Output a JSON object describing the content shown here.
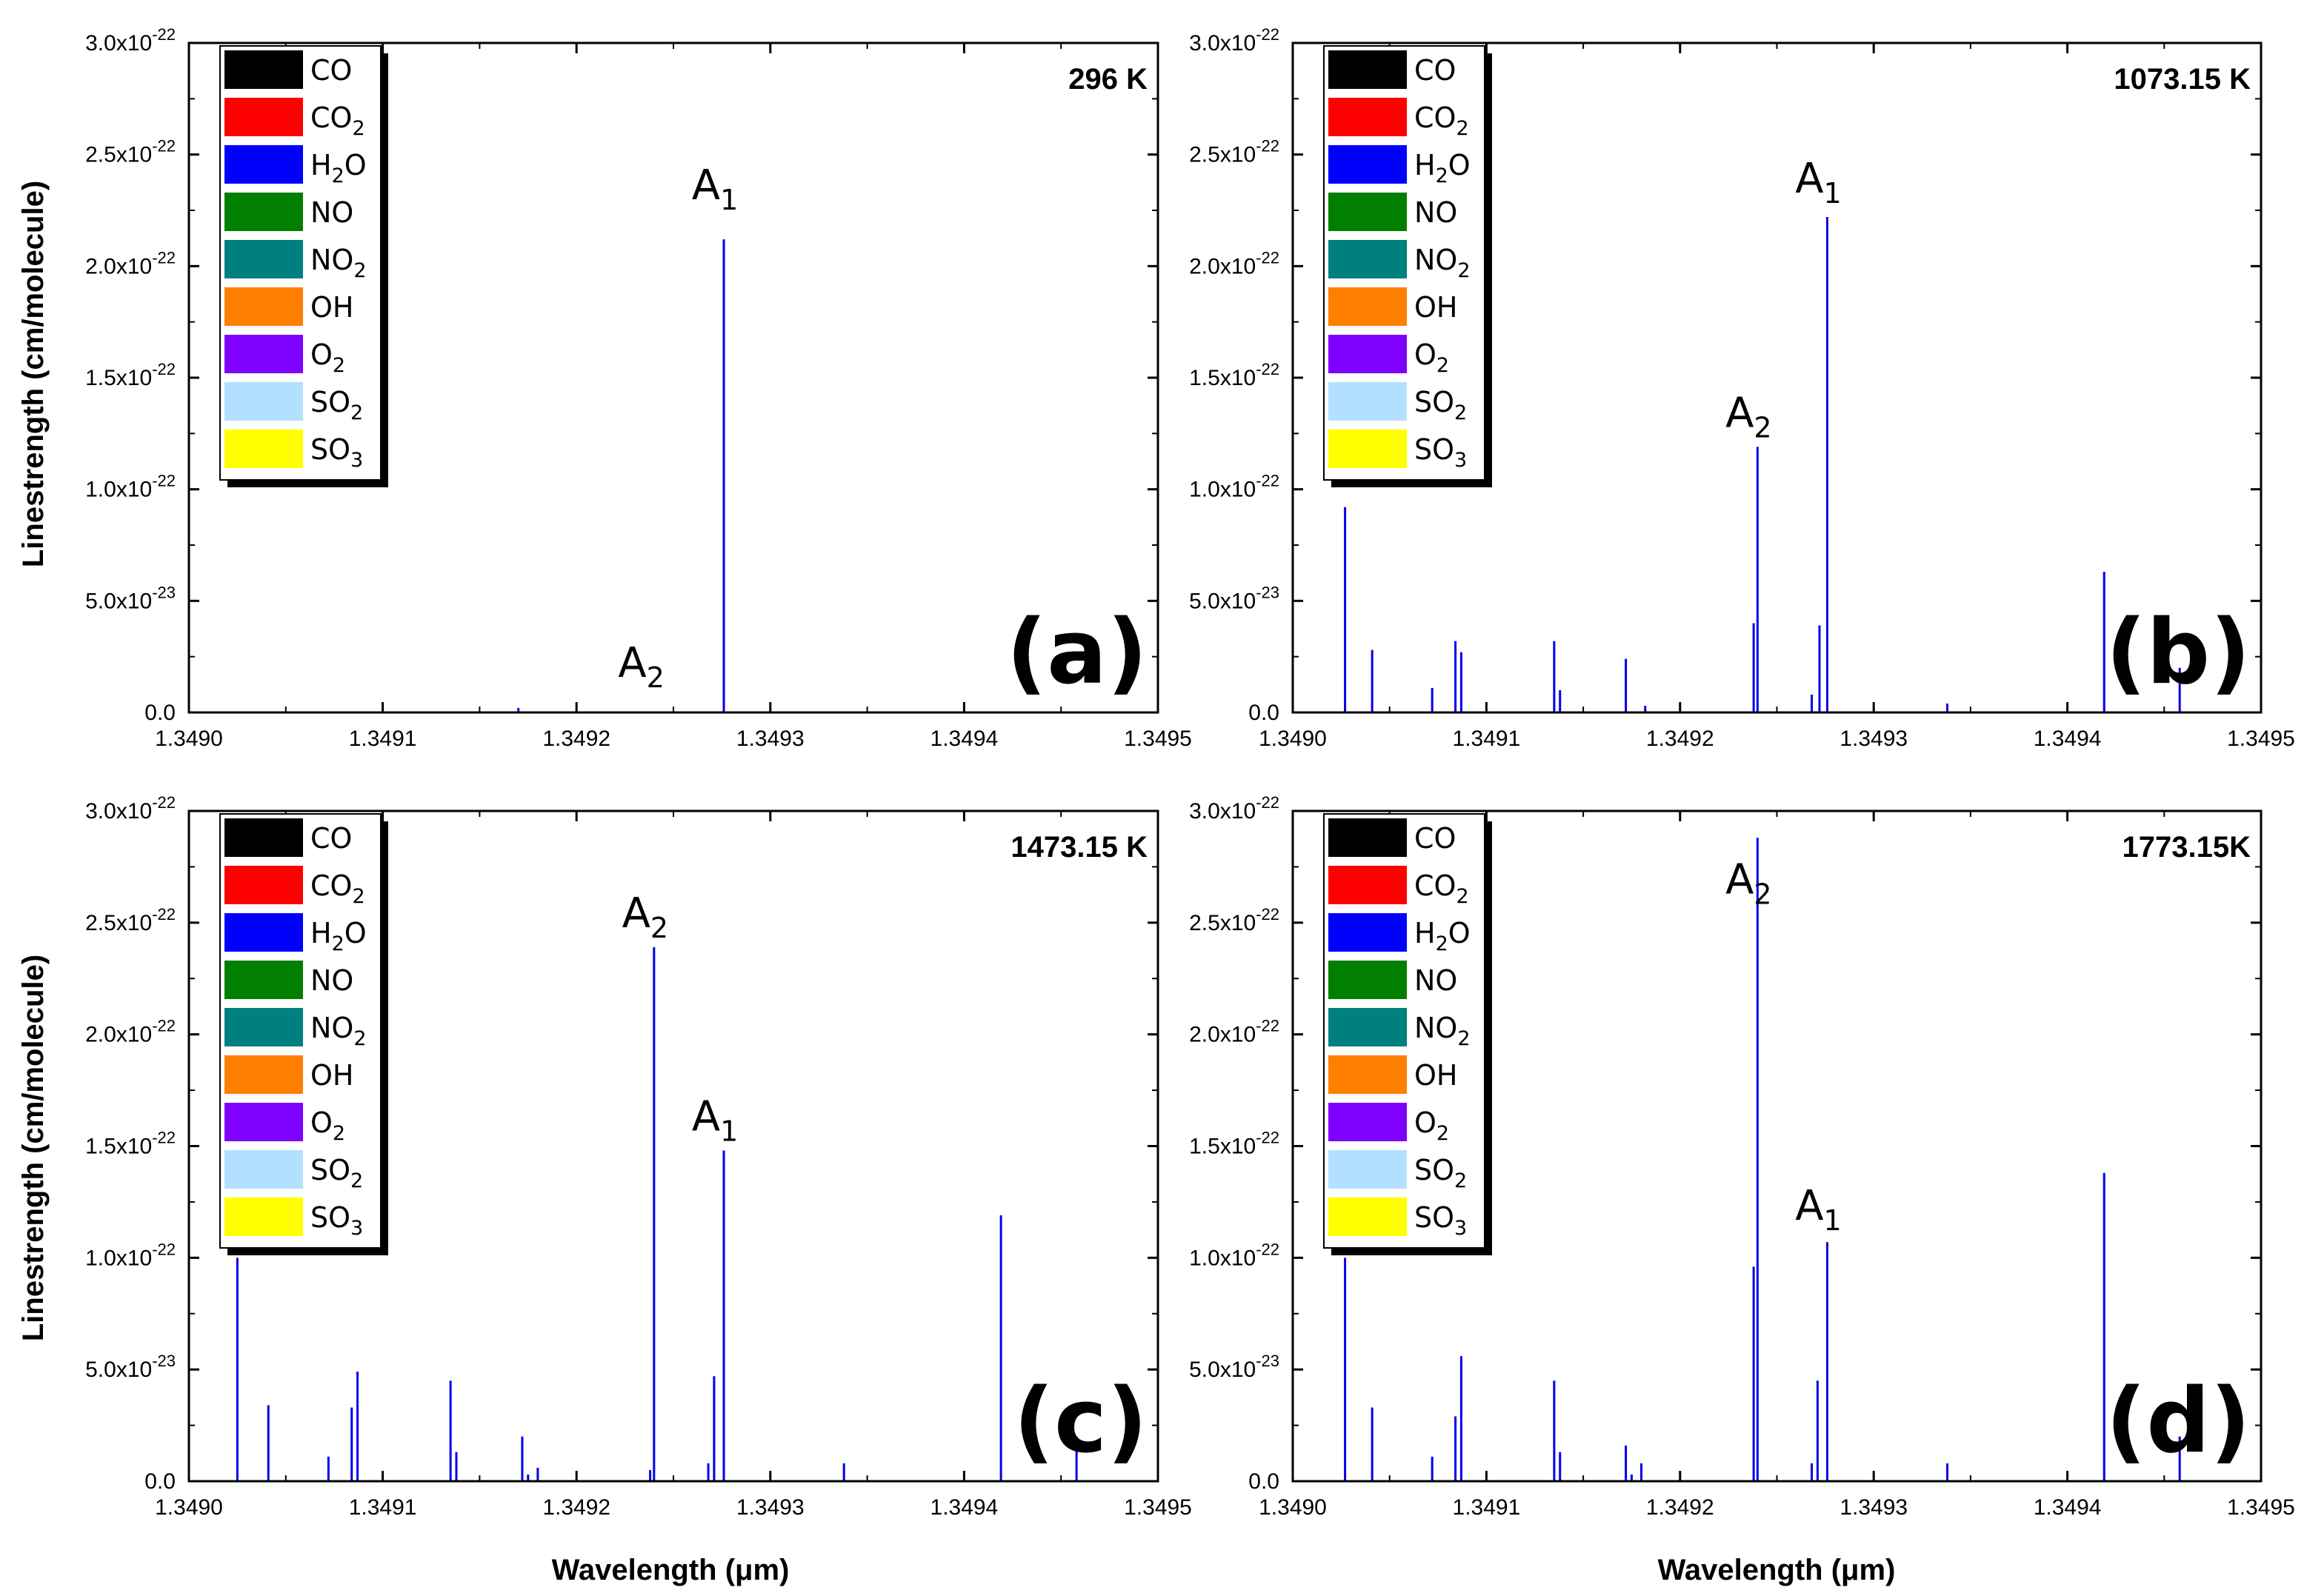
{
  "colors": {
    "CO": "#000000",
    "CO2": "#ff0000",
    "H2O": "#0000ff",
    "NO": "#007f00",
    "NO2": "#007f7f",
    "OH": "#ff7f00",
    "O2": "#7f00ff",
    "SO2": "#b3e0ff",
    "SO3": "#ffff00",
    "line": "#0000ee"
  },
  "legend": [
    {
      "main": "CO",
      "sub": "",
      "rest": "",
      "color_key": "CO"
    },
    {
      "main": "CO",
      "sub": "2",
      "rest": "",
      "color_key": "CO2"
    },
    {
      "main": "H",
      "sub": "2",
      "rest": "O",
      "color_key": "H2O"
    },
    {
      "main": "NO",
      "sub": "",
      "rest": "",
      "color_key": "NO"
    },
    {
      "main": "NO",
      "sub": "2",
      "rest": "",
      "color_key": "NO2"
    },
    {
      "main": "OH",
      "sub": "",
      "rest": "",
      "color_key": "OH"
    },
    {
      "main": "O",
      "sub": "2",
      "rest": "",
      "color_key": "O2"
    },
    {
      "main": "SO",
      "sub": "2",
      "rest": "",
      "color_key": "SO2"
    },
    {
      "main": "SO",
      "sub": "3",
      "rest": "",
      "color_key": "SO3"
    }
  ],
  "axes": {
    "xlabel": "Wavelength (μm)",
    "ylabel": "Linestrength (cm/molecule)",
    "x_ticks": [
      "1.3490",
      "1.3491",
      "1.3492",
      "1.3493",
      "1.3494",
      "1.3495"
    ],
    "y_ticks": [
      {
        "mant": "0.0",
        "exp": ""
      },
      {
        "mant": "5.0x10",
        "exp": "-23"
      },
      {
        "mant": "1.0x10",
        "exp": "-22"
      },
      {
        "mant": "1.5x10",
        "exp": "-22"
      },
      {
        "mant": "2.0x10",
        "exp": "-22"
      },
      {
        "mant": "2.5x10",
        "exp": "-22"
      },
      {
        "mant": "3.0x10",
        "exp": "-22"
      }
    ]
  },
  "chart_data": [
    {
      "type": "bar",
      "panel_label": "(a)",
      "temperature": "296 K",
      "xlim": [
        1.349,
        1.3495
      ],
      "ylim": [
        0,
        3e-22
      ],
      "x": [
        1.34917,
        1.349276
      ],
      "y": [
        2e-24,
        2.12e-22
      ],
      "annotations": [
        {
          "main": "A",
          "sub": "1",
          "x": 1.349276,
          "y": 2.3e-22
        },
        {
          "main": "A",
          "sub": "2",
          "x": 1.349238,
          "y": 1.6e-23
        }
      ]
    },
    {
      "type": "bar",
      "panel_label": "(b)",
      "temperature": "1073.15 K",
      "xlim": [
        1.349,
        1.3495
      ],
      "ylim": [
        0,
        3e-22
      ],
      "x": [
        1.349027,
        1.349041,
        1.349072,
        1.349084,
        1.349087,
        1.349135,
        1.349138,
        1.349172,
        1.349182,
        1.349238,
        1.34924,
        1.349268,
        1.349272,
        1.349276,
        1.349338,
        1.349419,
        1.349458
      ],
      "y": [
        9.2e-23,
        2.8e-23,
        1.1e-23,
        3.2e-23,
        2.7e-23,
        3.2e-23,
        1e-23,
        2.4e-23,
        3e-24,
        4e-23,
        1.19e-22,
        8e-24,
        3.9e-23,
        2.22e-22,
        4e-24,
        6.3e-23,
        2e-23
      ],
      "annotations": [
        {
          "main": "A",
          "sub": "1",
          "x": 1.349276,
          "y": 2.33e-22
        },
        {
          "main": "A",
          "sub": "2",
          "x": 1.34924,
          "y": 1.28e-22
        }
      ]
    },
    {
      "type": "bar",
      "panel_label": "(c)",
      "temperature": "1473.15 K",
      "xlim": [
        1.349,
        1.3495
      ],
      "ylim": [
        0,
        3e-22
      ],
      "x": [
        1.349025,
        1.349041,
        1.349072,
        1.349084,
        1.349087,
        1.349135,
        1.349138,
        1.349172,
        1.349175,
        1.34918,
        1.349238,
        1.34924,
        1.349268,
        1.349271,
        1.349276,
        1.349338,
        1.349419,
        1.349458
      ],
      "y": [
        1e-22,
        3.4e-23,
        1.1e-23,
        3.3e-23,
        4.9e-23,
        4.5e-23,
        1.3e-23,
        2e-23,
        3e-24,
        6e-24,
        5e-24,
        2.39e-22,
        8e-24,
        4.7e-23,
        1.48e-22,
        8e-24,
        1.19e-22,
        2e-23
      ],
      "annotations": [
        {
          "main": "A",
          "sub": "2",
          "x": 1.34924,
          "y": 2.48e-22
        },
        {
          "main": "A",
          "sub": "1",
          "x": 1.349276,
          "y": 1.57e-22
        }
      ]
    },
    {
      "type": "bar",
      "panel_label": "(d)",
      "temperature": "1773.15K",
      "xlim": [
        1.349,
        1.3495
      ],
      "ylim": [
        0,
        3e-22
      ],
      "x": [
        1.349027,
        1.349041,
        1.349072,
        1.349084,
        1.349087,
        1.349135,
        1.349138,
        1.349172,
        1.349175,
        1.34918,
        1.349238,
        1.34924,
        1.349268,
        1.349271,
        1.349276,
        1.349338,
        1.349419,
        1.349458
      ],
      "y": [
        1e-22,
        3.3e-23,
        1.1e-23,
        2.9e-23,
        5.6e-23,
        4.5e-23,
        1.3e-23,
        1.6e-23,
        3e-24,
        8e-24,
        9.6e-23,
        2.88e-22,
        8e-24,
        4.5e-23,
        1.07e-22,
        8e-24,
        1.38e-22,
        2e-23
      ],
      "annotations": [
        {
          "main": "A",
          "sub": "2",
          "x": 1.34924,
          "y": 2.63e-22
        },
        {
          "main": "A",
          "sub": "1",
          "x": 1.349276,
          "y": 1.17e-22
        }
      ]
    }
  ]
}
